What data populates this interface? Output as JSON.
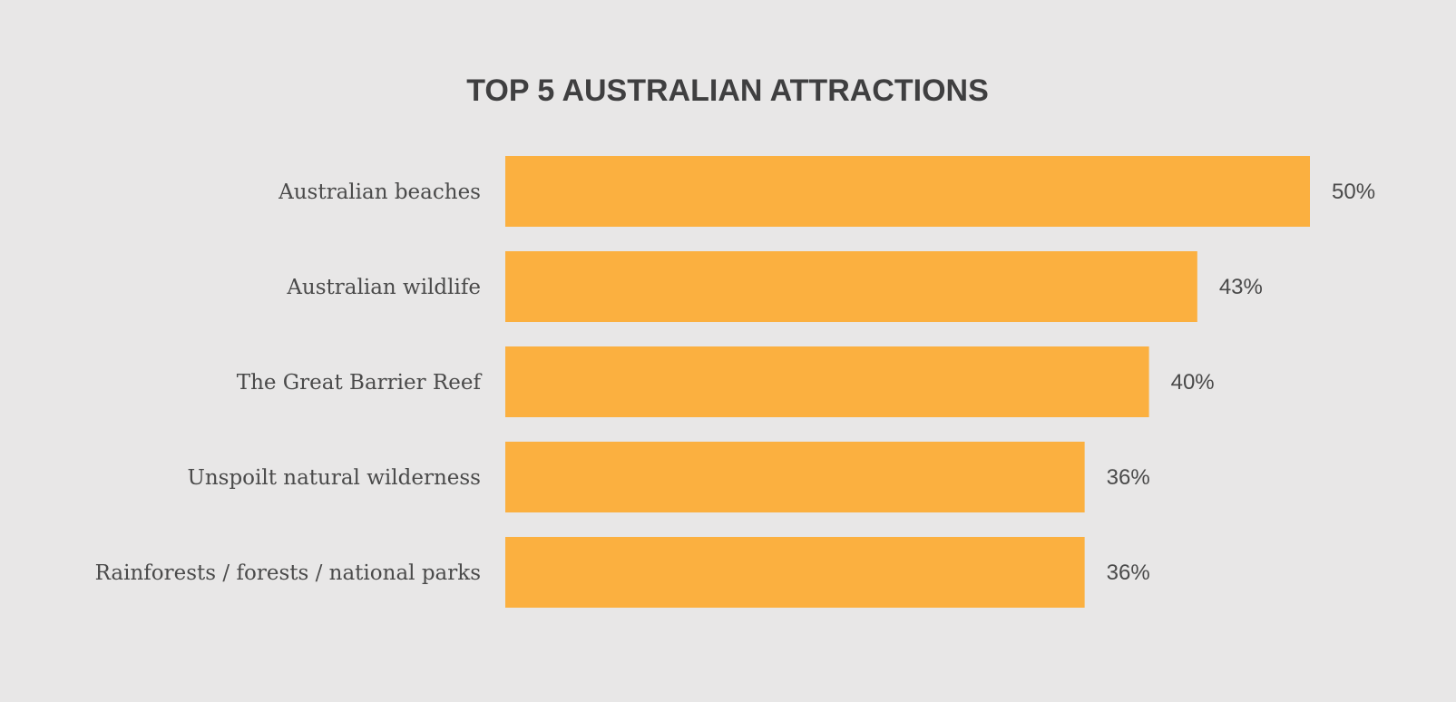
{
  "chart_data": {
    "type": "bar",
    "orientation": "horizontal",
    "title": "TOP 5 AUSTRALIAN ATTRACTIONS",
    "categories": [
      "Australian beaches",
      "Australian wildlife",
      "The Great Barrier Reef",
      "Unspoilt natural wilderness",
      "Rainforests / forests / national parks"
    ],
    "values": [
      50,
      43,
      40,
      36,
      36
    ],
    "value_labels": [
      "50%",
      "43%",
      "40%",
      "36%",
      "36%"
    ],
    "xlim": [
      0,
      50
    ],
    "grid": false,
    "legend": "none",
    "colors": {
      "bar": "#fbb040",
      "background": "#e8e7e7",
      "text": "#4a4a4a",
      "title": "#3f3f40"
    }
  }
}
